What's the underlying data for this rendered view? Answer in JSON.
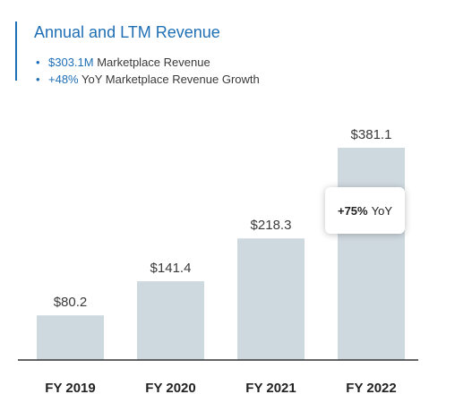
{
  "header": {
    "title": "Annual and LTM Revenue",
    "bullets": [
      {
        "highlight": "$303.1M",
        "text": "Marketplace Revenue"
      },
      {
        "highlight": "+48%",
        "text": "YoY Marketplace Revenue Growth"
      }
    ]
  },
  "callout": {
    "value": "+75%",
    "label": "YoY"
  },
  "colors": {
    "accent": "#1f6fb5",
    "bar": "#ced9df",
    "axis": "#333333"
  },
  "chart_data": {
    "type": "bar",
    "categories": [
      "FY 2019",
      "FY 2020",
      "FY 2021",
      "FY 2022"
    ],
    "values": [
      80.2,
      141.4,
      218.3,
      381.1
    ],
    "data_labels": [
      "$80.2",
      "$141.4",
      "$218.3",
      "$381.1"
    ],
    "title": "Annual and LTM Revenue",
    "xlabel": "",
    "ylabel": "",
    "ylim": [
      0,
      381.1
    ],
    "grid": false,
    "legend": "none"
  }
}
